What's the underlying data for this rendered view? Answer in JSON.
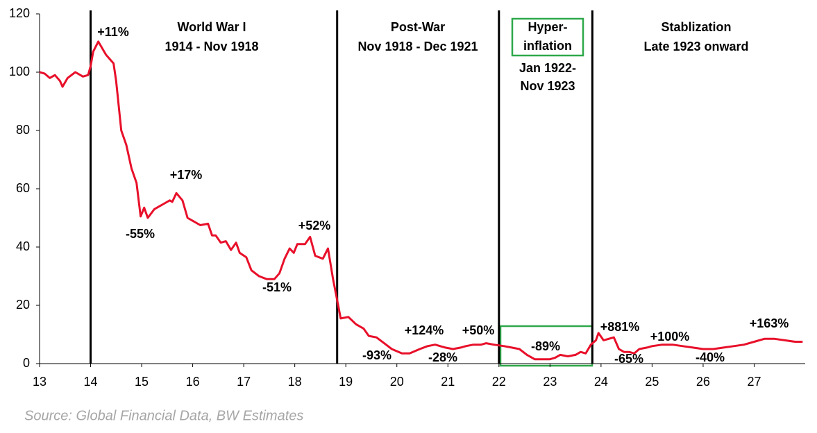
{
  "chart_data": {
    "type": "line",
    "x": [
      13.0,
      13.1,
      13.2,
      13.3,
      13.4,
      13.45,
      13.55,
      13.7,
      13.85,
      13.95,
      14.0,
      14.05,
      14.15,
      14.3,
      14.45,
      14.5,
      14.6,
      14.7,
      14.8,
      14.9,
      14.98,
      15.05,
      15.12,
      15.25,
      15.35,
      15.45,
      15.55,
      15.6,
      15.68,
      15.8,
      15.9,
      16.0,
      16.15,
      16.3,
      16.38,
      16.45,
      16.55,
      16.65,
      16.75,
      16.85,
      16.92,
      17.05,
      17.15,
      17.3,
      17.45,
      17.6,
      17.7,
      17.8,
      17.9,
      17.98,
      18.05,
      18.2,
      18.3,
      18.4,
      18.55,
      18.65,
      18.75,
      18.85,
      18.9,
      19.05,
      19.2,
      19.35,
      19.45,
      19.6,
      19.75,
      19.9,
      20.1,
      20.25,
      20.45,
      20.6,
      20.75,
      20.95,
      21.1,
      21.25,
      21.35,
      21.5,
      21.65,
      21.75,
      21.9,
      22.1,
      22.25,
      22.4,
      22.55,
      22.7,
      22.85,
      23.0,
      23.1,
      23.2,
      23.35,
      23.5,
      23.6,
      23.7,
      23.8,
      23.9,
      23.95,
      24.05,
      24.15,
      24.25,
      24.35,
      24.45,
      24.55,
      24.65,
      24.75,
      24.9,
      25.0,
      25.2,
      25.4,
      25.6,
      25.8,
      26.0,
      26.2,
      26.4,
      26.6,
      26.8,
      27.0,
      27.2,
      27.4,
      27.6,
      27.8,
      27.95
    ],
    "series": [
      {
        "color": "#e8102a",
        "values": [
          100,
          99.5,
          98,
          99,
          97,
          95,
          98,
          100,
          98.5,
          99,
          102,
          107,
          110.5,
          106,
          103,
          97,
          80,
          75,
          67,
          62,
          50.5,
          53.5,
          50,
          53,
          54,
          55,
          56,
          55.5,
          58.5,
          56,
          50,
          49,
          47.5,
          48,
          44,
          44,
          41.5,
          42,
          39,
          41.5,
          38,
          36.5,
          32,
          30,
          29,
          29,
          31,
          36,
          39.5,
          38,
          41,
          41,
          43.5,
          37,
          36,
          39.5,
          29,
          20,
          15.5,
          16,
          13.5,
          12,
          9.5,
          9,
          7,
          5,
          3.5,
          3.5,
          5,
          6,
          6.5,
          5.5,
          5,
          5.5,
          6,
          6.5,
          6.5,
          7,
          6.5,
          6,
          5.5,
          5,
          3,
          1.5,
          1.5,
          1.5,
          2,
          3,
          2.5,
          3,
          4,
          3.5,
          6.5,
          8,
          10.5,
          8,
          8.5,
          9,
          5,
          4,
          4,
          3.5,
          5,
          5.5,
          6,
          6.5,
          6.5,
          6,
          5.5,
          5,
          5,
          5.5,
          6,
          6.5,
          7.5,
          8.5,
          8.5,
          8,
          7.5,
          7.5
        ]
      }
    ],
    "xlim": [
      13,
      28
    ],
    "ylim": [
      0,
      120
    ],
    "xticks": [
      13,
      14,
      15,
      16,
      17,
      18,
      19,
      20,
      21,
      22,
      23,
      24,
      25,
      26,
      27
    ],
    "yticks": [
      0,
      20,
      40,
      60,
      80,
      100,
      120
    ],
    "period_lines": [
      14,
      18.83,
      22,
      23.83
    ],
    "periods": [
      [
        "World War I",
        "1914 - Nov 1918"
      ],
      [
        "Post-War",
        "Nov 1918 - Dec 1921"
      ],
      [
        "Hyper-",
        "inflation",
        "Jan 1922-",
        "Nov 1923"
      ],
      [
        "Stablization",
        "Late 1923 onward"
      ]
    ],
    "annotations": [
      "+11%",
      "-55%",
      "+17%",
      "+52%",
      "-51%",
      "-93%",
      "+124%",
      "-28%",
      "+50%",
      "-89%",
      "+881%",
      "-65%",
      "+100%",
      "-40%",
      "+163%"
    ],
    "source": "Source: Global Financial Data, BW Estimates"
  }
}
